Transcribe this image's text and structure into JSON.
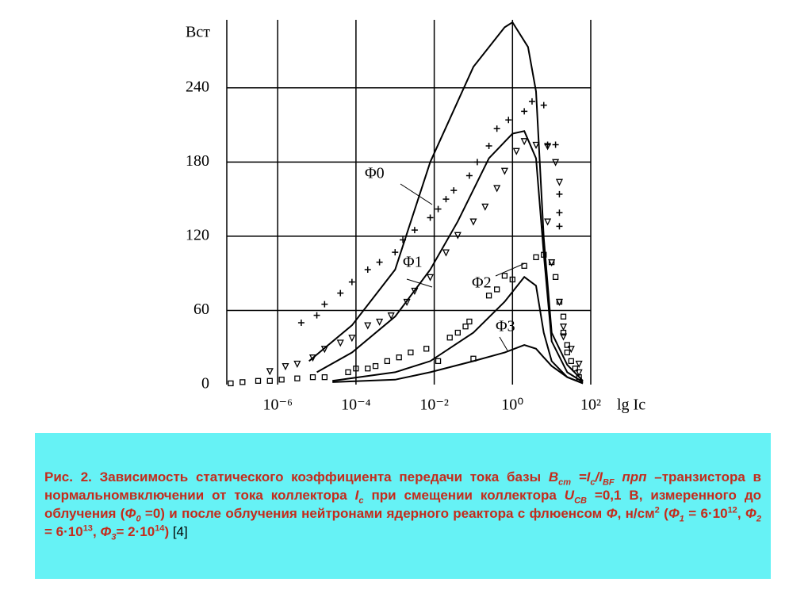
{
  "chart_data": {
    "type": "line",
    "log_x": true,
    "grid": true,
    "color": "#000000",
    "y_label": "Bст",
    "x_label": "lg Ic",
    "xlim": [
      5e-08,
      100
    ],
    "ylim": [
      0,
      295
    ],
    "xticks": [
      {
        "value": 1e-06,
        "label": "10⁻⁶"
      },
      {
        "value": 0.0001,
        "label": "10⁻⁴"
      },
      {
        "value": 0.01,
        "label": "10⁻²"
      },
      {
        "value": 1,
        "label": "10⁰"
      },
      {
        "value": 100,
        "label": "10²"
      }
    ],
    "yticks": [
      0,
      60,
      120,
      180,
      240
    ],
    "series": [
      {
        "name": "Φ0",
        "style": "line",
        "x": [
          6.3e-06,
          7.9e-05,
          0.001,
          0.0079,
          0.1,
          0.63,
          1,
          2.5,
          4,
          6.3,
          10,
          25,
          63
        ],
        "values": [
          19,
          48,
          93,
          180,
          257,
          289,
          293,
          273,
          237,
          119,
          42,
          16,
          3
        ]
      },
      {
        "name": "Φ1",
        "style": "line",
        "x": [
          1e-05,
          7.9e-05,
          0.001,
          0.0079,
          0.04,
          0.25,
          1,
          2,
          4,
          6.3,
          10,
          25,
          63
        ],
        "values": [
          10,
          26,
          55,
          93,
          132,
          183,
          203,
          205,
          183,
          106,
          35,
          10,
          2
        ]
      },
      {
        "name": "Φ2",
        "style": "line",
        "x": [
          2.5e-05,
          0.001,
          0.0079,
          0.1,
          0.63,
          2,
          4,
          6.3,
          10,
          25,
          63
        ],
        "values": [
          3,
          10,
          19,
          42,
          67,
          87,
          80,
          42,
          19,
          6,
          1
        ]
      },
      {
        "name": "Φ3",
        "style": "line",
        "x": [
          2.5e-05,
          0.001,
          0.0079,
          0.1,
          0.63,
          2,
          4,
          6.3,
          10,
          25,
          63
        ],
        "values": [
          2,
          4,
          10,
          19,
          26,
          32,
          29,
          22,
          15,
          6,
          1
        ]
      },
      {
        "style": "plus",
        "x": [
          4e-06,
          1e-05,
          1.58e-05,
          4e-05,
          7.9e-05,
          0.0002,
          0.0004,
          0.001,
          0.00158,
          0.00316,
          0.0079,
          0.0126,
          0.02,
          0.0316,
          0.079,
          0.126,
          0.25,
          0.4,
          0.79,
          2,
          3.16,
          6.3,
          7.9,
          12.6,
          15.8,
          15.8,
          15.8
        ],
        "values": [
          50,
          56,
          65,
          74,
          83,
          93,
          99,
          107,
          117,
          125,
          135,
          142,
          150,
          157,
          169,
          180,
          193,
          207,
          214,
          221,
          229,
          226,
          194,
          194,
          154,
          139,
          128
        ]
      },
      {
        "style": "triangle",
        "x": [
          6.3e-07,
          1.58e-06,
          3.16e-06,
          7.9e-06,
          1.58e-05,
          4e-05,
          7.9e-05,
          0.0002,
          0.0004,
          0.00079,
          0.002,
          0.00316,
          0.0079,
          0.02,
          0.04,
          0.1,
          0.2,
          0.4,
          0.63,
          1.26,
          2,
          4,
          7.9,
          12.6,
          15.8,
          7.9,
          10,
          15.8,
          20,
          20,
          31.6,
          50,
          50
        ],
        "values": [
          11,
          15,
          17,
          22,
          29,
          34,
          38,
          48,
          51,
          56,
          67,
          76,
          87,
          107,
          121,
          132,
          144,
          159,
          173,
          189,
          197,
          194,
          193,
          180,
          164,
          132,
          99,
          67,
          47,
          39,
          29,
          17,
          10
        ]
      },
      {
        "style": "square",
        "x": [
          6.3e-08,
          1.26e-07,
          3.16e-07,
          6.3e-07,
          1.26e-06,
          3.16e-06,
          7.9e-06,
          1.58e-05,
          6.3e-05,
          0.0001,
          0.0002,
          0.000316,
          0.00063,
          0.00126,
          0.0025,
          0.0063,
          0.0126,
          0.025,
          0.04,
          0.063,
          0.079,
          0.1,
          0.25,
          0.4,
          0.63,
          1,
          2,
          4,
          6.3,
          10,
          12.6,
          15.8,
          20,
          20,
          25,
          25,
          31.6,
          40,
          50
        ],
        "values": [
          1,
          2,
          3,
          3,
          4,
          5,
          6,
          6,
          10,
          13,
          13,
          15,
          19,
          22,
          26,
          29,
          19,
          38,
          42,
          47,
          51,
          21,
          72,
          77,
          88,
          85,
          96,
          103,
          105,
          99,
          87,
          67,
          55,
          42,
          32,
          26,
          19,
          13,
          6
        ]
      }
    ]
  },
  "caption": [
    "Рис. 2. Зависимость статического коэффициента передачи тока базы ",
    "B",
    "cm",
    " =I",
    "c",
    "/I",
    "BF",
    " ",
    "прп",
    " –транзистора в нормальномвключении от тока коллектора ",
    "I",
    "c",
    " при смещении коллектора ",
    "U",
    "CB",
    " =0,1 В, измеренного до облучения (",
    "Φ",
    "0",
    " =0) и после облучения нейтронами ядерного реактора с флюенсом ",
    "Φ",
    ", н/см",
    "2",
    " (",
    "Φ",
    "1",
    " = 6·10",
    "12",
    ", ",
    "Φ",
    "2",
    " = 6·10",
    "13",
    ", ",
    "Φ",
    "3",
    "=  2·10",
    "14",
    ") ",
    "[4]"
  ]
}
